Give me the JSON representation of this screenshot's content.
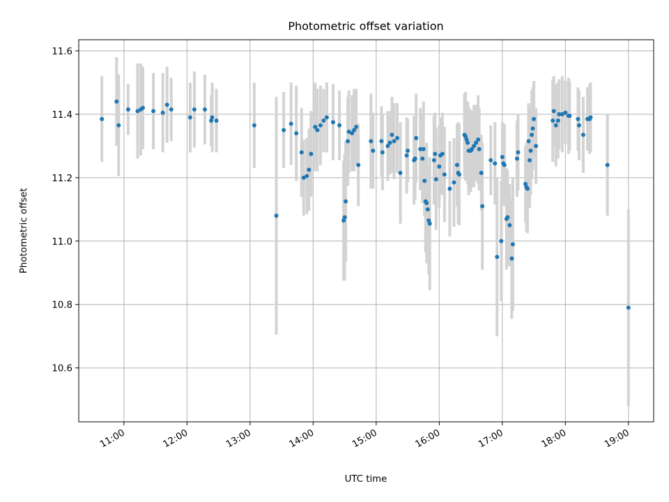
{
  "chart_data": {
    "type": "scatter",
    "title": "Photometric offset variation",
    "xlabel": "UTC time",
    "ylabel": "Photometric offset",
    "x_ticks": [
      "11:00",
      "12:00",
      "13:00",
      "14:00",
      "15:00",
      "16:00",
      "17:00",
      "18:00",
      "19:00"
    ],
    "y_ticks": [
      "10.6",
      "10.8",
      "11.0",
      "11.2",
      "11.4",
      "11.6"
    ],
    "xlim": [
      "10:17",
      "19:24"
    ],
    "ylim": [
      10.43,
      11.635
    ],
    "grid": true,
    "colors": {
      "point": "#1f77b4",
      "errorbar": "#d3d3d3",
      "grid": "#b0b0b0"
    },
    "points": [
      [
        "10:39",
        11.385,
        0.135
      ],
      [
        "10:53",
        11.44,
        0.14
      ],
      [
        "10:55",
        11.365,
        0.16
      ],
      [
        "11:04",
        11.415,
        0.08
      ],
      [
        "11:13",
        11.41,
        0.15
      ],
      [
        "11:16",
        11.415,
        0.145
      ],
      [
        "11:18",
        11.42,
        0.13
      ],
      [
        "11:28",
        11.41,
        0.12
      ],
      [
        "11:37",
        11.405,
        0.125
      ],
      [
        "11:41",
        11.43,
        0.12
      ],
      [
        "11:45",
        11.415,
        0.1
      ],
      [
        "12:03",
        11.39,
        0.11
      ],
      [
        "12:07",
        11.415,
        0.12
      ],
      [
        "12:17",
        11.415,
        0.11
      ],
      [
        "12:23",
        11.38,
        0.08
      ],
      [
        "12:24",
        11.39,
        0.11
      ],
      [
        "12:28",
        11.38,
        0.1
      ],
      [
        "13:04",
        11.365,
        0.135
      ],
      [
        "13:25",
        11.08,
        0.375
      ],
      [
        "13:32",
        11.35,
        0.12
      ],
      [
        "13:39",
        11.37,
        0.13
      ],
      [
        "13:44",
        11.34,
        0.15
      ],
      [
        "13:49",
        11.28,
        0.14
      ],
      [
        "13:51",
        11.2,
        0.12
      ],
      [
        "13:54",
        11.205,
        0.12
      ],
      [
        "13:56",
        11.225,
        0.13
      ],
      [
        "13:58",
        11.275,
        0.135
      ],
      [
        "14:02",
        11.36,
        0.14
      ],
      [
        "14:04",
        11.35,
        0.13
      ],
      [
        "14:07",
        11.365,
        0.125
      ],
      [
        "14:10",
        11.38,
        0.1
      ],
      [
        "14:13",
        11.39,
        0.11
      ],
      [
        "14:19",
        11.375,
        0.12
      ],
      [
        "14:25",
        11.365,
        0.11
      ],
      [
        "14:29",
        11.065,
        0.19
      ],
      [
        "14:30",
        11.075,
        0.2
      ],
      [
        "14:31",
        11.125,
        0.19
      ],
      [
        "14:33",
        11.315,
        0.14
      ],
      [
        "14:34",
        11.345,
        0.13
      ],
      [
        "14:37",
        11.34,
        0.12
      ],
      [
        "14:39",
        11.35,
        0.13
      ],
      [
        "14:41",
        11.36,
        0.12
      ],
      [
        "14:43",
        11.24,
        0.13
      ],
      [
        "14:55",
        11.315,
        0.15
      ],
      [
        "14:57",
        11.285,
        0.12
      ],
      [
        "15:05",
        11.315,
        0.11
      ],
      [
        "15:06",
        11.28,
        0.12
      ],
      [
        "15:11",
        11.3,
        0.11
      ],
      [
        "15:13",
        11.31,
        0.1
      ],
      [
        "15:15",
        11.335,
        0.12
      ],
      [
        "15:17",
        11.315,
        0.12
      ],
      [
        "15:20",
        11.325,
        0.11
      ],
      [
        "15:23",
        11.215,
        0.16
      ],
      [
        "15:29",
        11.27,
        0.12
      ],
      [
        "15:30",
        11.285,
        0.1
      ],
      [
        "15:36",
        11.255,
        0.14
      ],
      [
        "15:37",
        11.26,
        0.13
      ],
      [
        "15:38",
        11.325,
        0.14
      ],
      [
        "15:42",
        11.29,
        0.13
      ],
      [
        "15:44",
        11.26,
        0.14
      ],
      [
        "15:45",
        11.29,
        0.15
      ],
      [
        "15:46",
        11.19,
        0.11
      ],
      [
        "15:47",
        11.125,
        0.16
      ],
      [
        "15:48",
        11.12,
        0.19
      ],
      [
        "15:49",
        11.1,
        0.14
      ],
      [
        "15:50",
        11.065,
        0.17
      ],
      [
        "15:51",
        11.055,
        0.21
      ],
      [
        "15:55",
        11.255,
        0.14
      ],
      [
        "15:56",
        11.275,
        0.13
      ],
      [
        "15:57",
        11.195,
        0.16
      ],
      [
        "16:00",
        11.235,
        0.13
      ],
      [
        "16:01",
        11.27,
        0.12
      ],
      [
        "16:03",
        11.275,
        0.13
      ],
      [
        "16:05",
        11.21,
        0.15
      ],
      [
        "16:10",
        11.165,
        0.15
      ],
      [
        "16:14",
        11.185,
        0.14
      ],
      [
        "16:17",
        11.24,
        0.13
      ],
      [
        "16:18",
        11.215,
        0.16
      ],
      [
        "16:19",
        11.21,
        0.16
      ],
      [
        "16:24",
        11.335,
        0.13
      ],
      [
        "16:25",
        11.33,
        0.14
      ],
      [
        "16:26",
        11.32,
        0.12
      ],
      [
        "16:27",
        11.31,
        0.13
      ],
      [
        "16:28",
        11.285,
        0.14
      ],
      [
        "16:30",
        11.285,
        0.13
      ],
      [
        "16:31",
        11.29,
        0.12
      ],
      [
        "16:33",
        11.3,
        0.13
      ],
      [
        "16:35",
        11.31,
        0.12
      ],
      [
        "16:37",
        11.32,
        0.14
      ],
      [
        "16:38",
        11.29,
        0.13
      ],
      [
        "16:40",
        11.215,
        0.12
      ],
      [
        "16:41",
        11.11,
        0.2
      ],
      [
        "16:49",
        11.255,
        0.11
      ],
      [
        "16:53",
        11.245,
        0.13
      ],
      [
        "16:55",
        10.95,
        0.25
      ],
      [
        "16:59",
        11.0,
        0.19
      ],
      [
        "17:00",
        11.265,
        0.11
      ],
      [
        "17:01",
        11.245,
        0.12
      ],
      [
        "17:02",
        11.24,
        0.13
      ],
      [
        "17:04",
        11.07,
        0.16
      ],
      [
        "17:05",
        11.075,
        0.15
      ],
      [
        "17:07",
        11.05,
        0.13
      ],
      [
        "17:09",
        10.945,
        0.19
      ],
      [
        "17:10",
        10.99,
        0.21
      ],
      [
        "17:14",
        11.26,
        0.12
      ],
      [
        "17:15",
        11.28,
        0.12
      ],
      [
        "17:22",
        11.18,
        0.12
      ],
      [
        "17:23",
        11.17,
        0.14
      ],
      [
        "17:24",
        11.165,
        0.14
      ],
      [
        "17:25",
        11.315,
        0.12
      ],
      [
        "17:26",
        11.255,
        0.15
      ],
      [
        "17:27",
        11.285,
        0.14
      ],
      [
        "17:28",
        11.335,
        0.14
      ],
      [
        "17:29",
        11.355,
        0.13
      ],
      [
        "17:30",
        11.385,
        0.12
      ],
      [
        "17:32",
        11.3,
        0.12
      ],
      [
        "17:48",
        11.38,
        0.13
      ],
      [
        "17:49",
        11.41,
        0.11
      ],
      [
        "17:51",
        11.365,
        0.13
      ],
      [
        "17:53",
        11.38,
        0.12
      ],
      [
        "17:54",
        11.4,
        0.11
      ],
      [
        "17:57",
        11.4,
        0.12
      ],
      [
        "18:00",
        11.405,
        0.1
      ],
      [
        "18:03",
        11.395,
        0.12
      ],
      [
        "18:04",
        11.395,
        0.11
      ],
      [
        "18:12",
        11.385,
        0.1
      ],
      [
        "18:13",
        11.365,
        0.11
      ],
      [
        "18:17",
        11.335,
        0.12
      ],
      [
        "18:21",
        11.385,
        0.1
      ],
      [
        "18:23",
        11.385,
        0.11
      ],
      [
        "18:24",
        11.39,
        0.11
      ],
      [
        "18:40",
        11.24,
        0.16
      ],
      [
        "19:00",
        10.79,
        0.31
      ]
    ]
  }
}
